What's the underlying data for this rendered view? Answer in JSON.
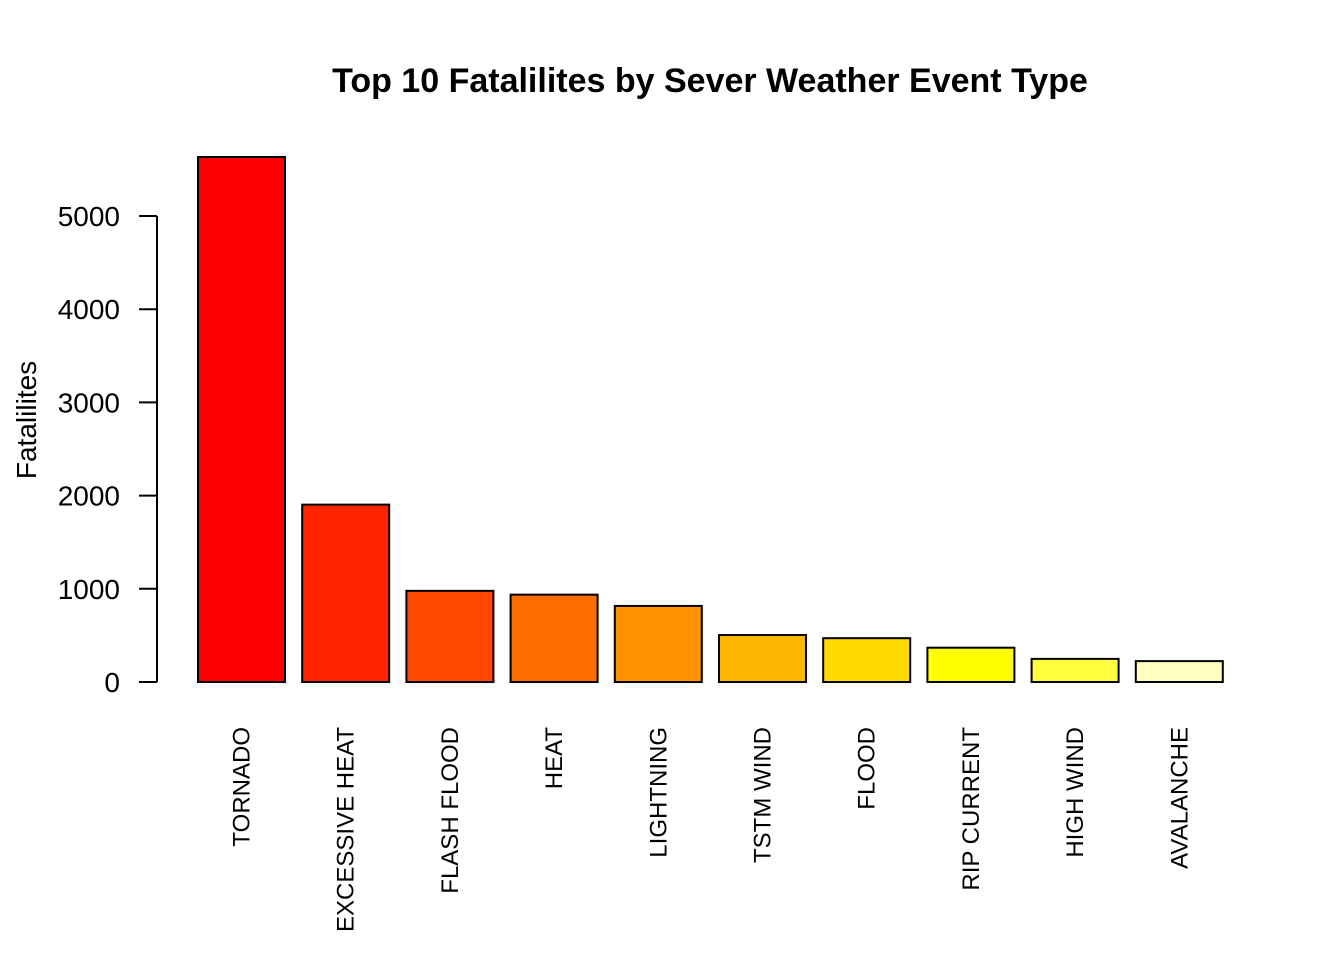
{
  "chart_data": {
    "type": "bar",
    "title": "Top 10 Fatalilites by Sever Weather Event Type",
    "xlabel": "",
    "ylabel": "Fatalilites",
    "categories": [
      "TORNADO",
      "EXCESSIVE HEAT",
      "FLASH FLOOD",
      "HEAT",
      "LIGHTNING",
      "TSTM WIND",
      "FLOOD",
      "RIP CURRENT",
      "HIGH WIND",
      "AVALANCHE"
    ],
    "values": [
      5633,
      1903,
      978,
      937,
      816,
      504,
      470,
      368,
      248,
      224
    ],
    "colors": [
      "#FF0000",
      "#FF2400",
      "#FF4900",
      "#FF6D00",
      "#FF9200",
      "#FFB600",
      "#FFDB00",
      "#FFFF00",
      "#FFFF40",
      "#FFFFBF"
    ],
    "yticks": [
      0,
      1000,
      2000,
      3000,
      4000,
      5000
    ],
    "ylim": [
      0,
      5633
    ],
    "grid": false,
    "legend": "none",
    "category_label_orientation": "vertical"
  }
}
